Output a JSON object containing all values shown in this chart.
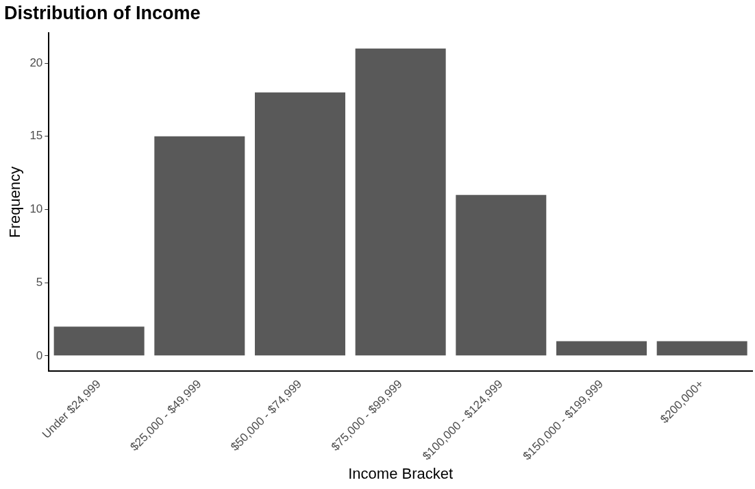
{
  "chart_data": {
    "type": "bar",
    "title": "Distribution of Income",
    "xlabel": "Income Bracket",
    "ylabel": "Frequency",
    "categories": [
      "Under $24,999",
      "$25,000 - $49,999",
      "$50,000 - $74,999",
      "$75,000 - $99,999",
      "$100,000 - $124,999",
      "$150,000 - $199,999",
      "$200,000+"
    ],
    "values": [
      2,
      15,
      18,
      21,
      11,
      1,
      1
    ],
    "color": "#595959",
    "ylim": [
      -1.05,
      22.05
    ],
    "yticks": [
      0,
      5,
      10,
      15,
      20
    ],
    "grid": false,
    "legend": false
  }
}
